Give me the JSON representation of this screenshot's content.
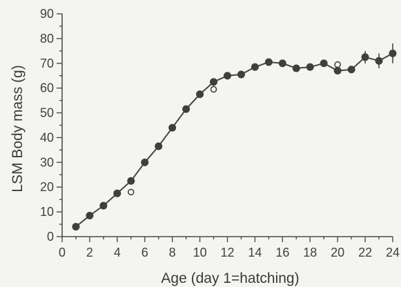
{
  "chart_data": {
    "type": "scatter",
    "title": "",
    "xlabel": "Age (day 1=hatching)",
    "ylabel": "LSM Body mass (g)",
    "xlim": [
      0,
      24
    ],
    "ylim": [
      0,
      90
    ],
    "xticks": [
      0,
      2,
      4,
      6,
      8,
      10,
      12,
      14,
      16,
      18,
      20,
      22,
      24
    ],
    "yticks": [
      0,
      10,
      20,
      30,
      40,
      50,
      60,
      70,
      80,
      90
    ],
    "grid": false,
    "legend": "none",
    "series": [
      {
        "style": "filled-line",
        "x": [
          1,
          2,
          3,
          4,
          5,
          6,
          7,
          8,
          9,
          10,
          11,
          12,
          13,
          14,
          15,
          16,
          17,
          18,
          19,
          20,
          21,
          22,
          23,
          24
        ],
        "y": [
          4,
          8.5,
          12.5,
          17.5,
          22.5,
          30,
          36.5,
          44,
          51.5,
          57.5,
          62.5,
          65,
          65.5,
          68.5,
          70.5,
          70,
          68,
          68.5,
          70,
          67,
          67.5,
          72.5,
          71,
          74
        ],
        "yerr": [
          0,
          0,
          0,
          0,
          0,
          0,
          0,
          0,
          0,
          0,
          0,
          0,
          0,
          0,
          0,
          0,
          0,
          0,
          0,
          0,
          0,
          2.5,
          3,
          4
        ]
      },
      {
        "style": "open",
        "x": [
          5,
          11,
          20
        ],
        "y": [
          18,
          59.5,
          69.5
        ]
      }
    ],
    "colors": {
      "marker": "#3f3f3f",
      "line": "#444444",
      "axis": "#4b4b4b"
    }
  }
}
